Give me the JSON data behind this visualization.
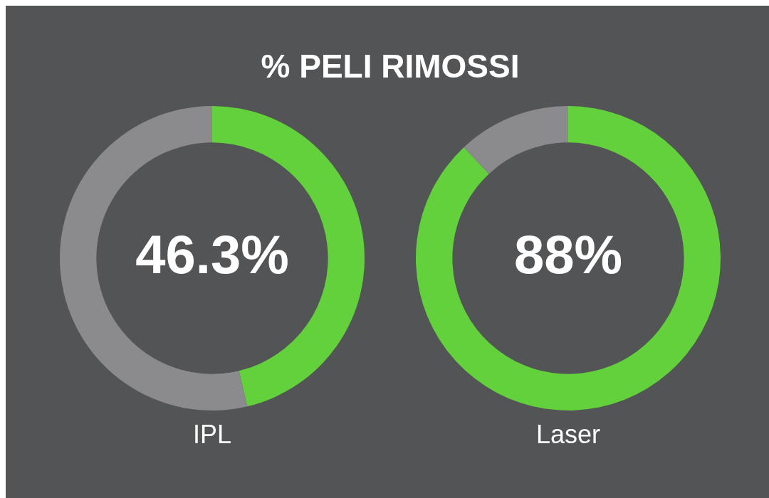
{
  "chart_data": [
    {
      "type": "donut",
      "title": "% PELI RIMOSSI",
      "xlabel": "IPL",
      "categories": [
        null,
        null
      ],
      "values": [
        46.3,
        53.7
      ],
      "colors": [
        "#62d13c",
        "#8b8b8d"
      ],
      "value_labels": [
        "46.3%",
        null
      ],
      "legend": false
    },
    {
      "type": "donut",
      "xlabel": "Laser",
      "categories": [
        null,
        null
      ],
      "values": [
        88,
        12
      ],
      "colors": [
        "#62d13c",
        "#8b8b8d"
      ],
      "value_labels": [
        "88%",
        null
      ],
      "legend": false
    }
  ]
}
